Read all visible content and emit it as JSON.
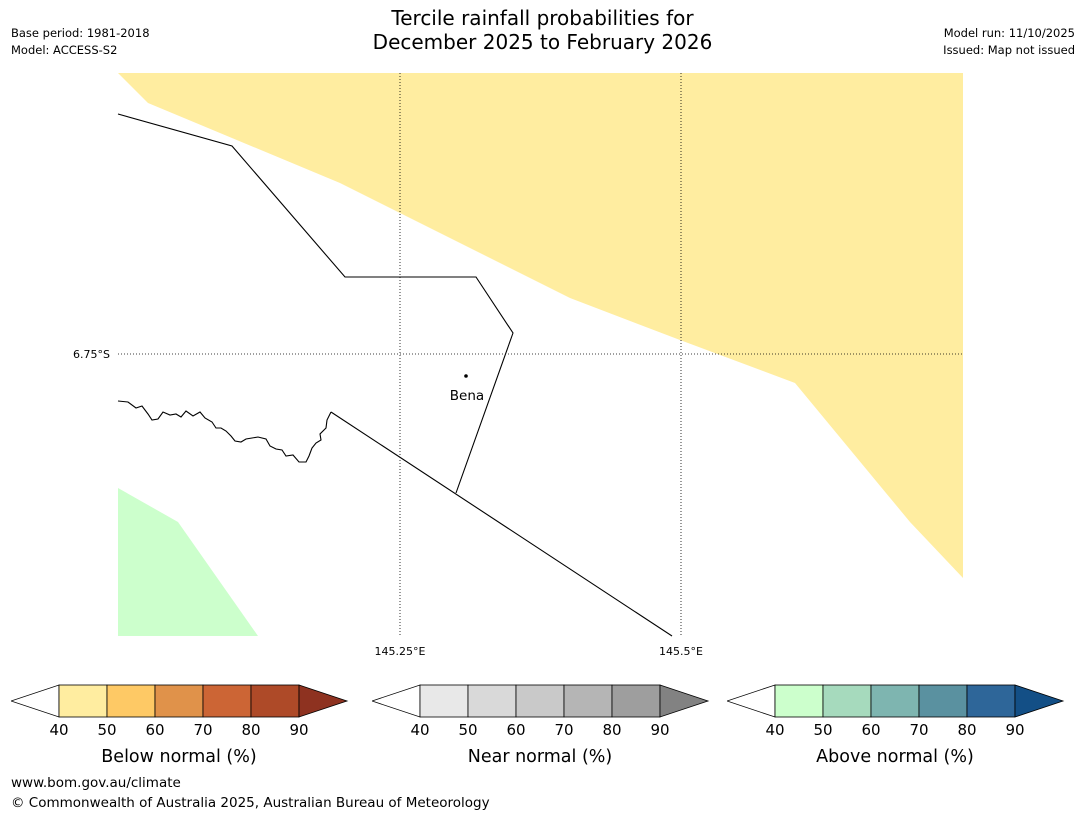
{
  "header": {
    "title_line1": "Tercile rainfall probabilities for",
    "title_line2": "December 2025 to February 2026",
    "base_period": "Base period: 1981-2018",
    "model": "Model: ACCESS-S2",
    "model_run": "Model run: 11/10/2025",
    "issued": "Issued: Map not issued"
  },
  "map": {
    "latitude_label": "6.75°S",
    "longitude_labels": [
      "145.25°E",
      "145.5°E"
    ],
    "place": {
      "name": "Bena"
    },
    "regions": [
      {
        "category": "Below normal",
        "probability_band": "40-50",
        "color": "#ffeda0"
      },
      {
        "category": "Above normal",
        "probability_band": "40-50",
        "color": "#ccffcc"
      }
    ]
  },
  "legends": [
    {
      "caption": "Below normal (%)",
      "ticks": [
        "40",
        "50",
        "60",
        "70",
        "80",
        "90"
      ],
      "colors": [
        "#ffeda0",
        "#fec965",
        "#e0924a",
        "#cc6535",
        "#ae4a28",
        "#8e3220"
      ]
    },
    {
      "caption": "Near normal (%)",
      "ticks": [
        "40",
        "50",
        "60",
        "70",
        "80",
        "90"
      ],
      "colors": [
        "#e8e8e8",
        "#d9d9d9",
        "#c9c9c9",
        "#b5b5b5",
        "#9e9e9e",
        "#828282"
      ]
    },
    {
      "caption": "Above normal (%)",
      "ticks": [
        "40",
        "50",
        "60",
        "70",
        "80",
        "90"
      ],
      "colors": [
        "#ccffcc",
        "#a6dabd",
        "#7eb5b0",
        "#5a91a0",
        "#2e6699",
        "#134f86"
      ]
    }
  ],
  "footer": {
    "url": "www.bom.gov.au/climate",
    "copyright": "© Commonwealth of Australia 2025, Australian Bureau of Meteorology"
  }
}
